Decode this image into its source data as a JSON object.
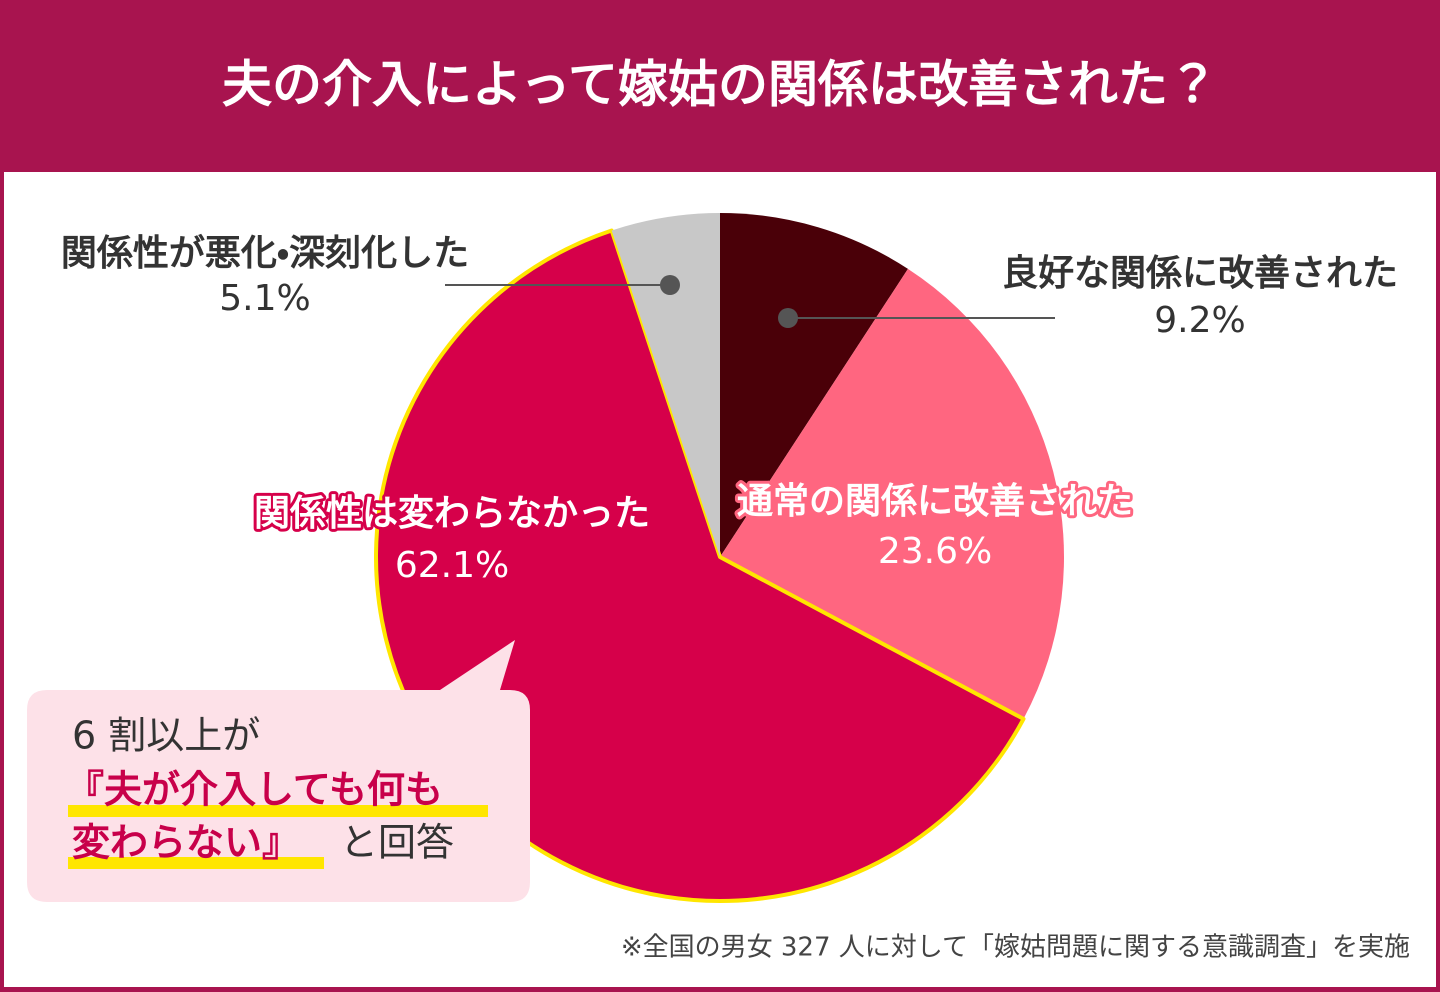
{
  "chart_data": {
    "type": "pie",
    "title": "夫の介入によって嫁姑の関係は改善された？",
    "categories": [
      "良好な関係に改善された",
      "通常の関係に改善された",
      "関係性は変わらなかった",
      "関係性が悪化・深刻化した"
    ],
    "values": [
      9.2,
      23.6,
      62.1,
      5.1
    ],
    "value_labels": [
      "9.2%",
      "23.6%",
      "62.1%",
      "5.1%"
    ],
    "colors": [
      "#4a0008",
      "#ff6680",
      "#d6004a",
      "#c8c8c8"
    ],
    "annotations": [
      "6 割以上が",
      "『夫が介入しても何も",
      "変わらない』",
      "と回答"
    ],
    "note": "※全国の男女 327 人に対して「嫁姑問題に関する意識調査」を実施"
  }
}
